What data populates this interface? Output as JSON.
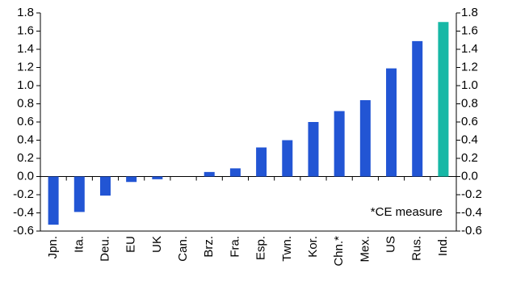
{
  "chart_data": {
    "type": "bar",
    "categories": [
      "Jpn.",
      "Ita.",
      "Deu.",
      "EU",
      "UK",
      "Can.",
      "Brz.",
      "Fra.",
      "Esp.",
      "Twn.",
      "Kor.",
      "Chn.*",
      "Mex.",
      "US",
      "Rus.",
      "Ind."
    ],
    "values": [
      -0.53,
      -0.39,
      -0.21,
      -0.06,
      -0.03,
      0.0,
      0.05,
      0.09,
      0.32,
      0.4,
      0.6,
      0.72,
      0.84,
      1.19,
      1.49,
      1.7
    ],
    "colors": [
      "#2255d4",
      "#2255d4",
      "#2255d4",
      "#2255d4",
      "#2255d4",
      "#2255d4",
      "#2255d4",
      "#2255d4",
      "#2255d4",
      "#2255d4",
      "#2255d4",
      "#2255d4",
      "#2255d4",
      "#2255d4",
      "#2255d4",
      "#17b8a6"
    ],
    "ylim": [
      -0.6,
      1.8
    ],
    "yticks": [
      {
        "value": 1.8,
        "label": "1.8"
      },
      {
        "value": 1.6,
        "label": "1.6"
      },
      {
        "value": 1.4,
        "label": "1.4"
      },
      {
        "value": 1.2,
        "label": "1.2"
      },
      {
        "value": 1.0,
        "label": "1.0"
      },
      {
        "value": 0.8,
        "label": "0.8"
      },
      {
        "value": 0.6,
        "label": "0.6"
      },
      {
        "value": 0.4,
        "label": "0.4"
      },
      {
        "value": 0.2,
        "label": "0.2"
      },
      {
        "value": 0.0,
        "label": "0.0"
      },
      {
        "value": -0.2,
        "label": "-0.2"
      },
      {
        "value": -0.4,
        "label": "-0.4"
      },
      {
        "value": -0.6,
        "label": "-0.6"
      }
    ],
    "y2lim": [
      -0.6,
      1.8
    ],
    "y2ticks": [
      {
        "value": 1.8,
        "label": "1.8"
      },
      {
        "value": 1.6,
        "label": "1.6"
      },
      {
        "value": 1.4,
        "label": "1.4"
      },
      {
        "value": 1.2,
        "label": "1.2"
      },
      {
        "value": 1.0,
        "label": "1.0"
      },
      {
        "value": 0.8,
        "label": "0.8"
      },
      {
        "value": 0.6,
        "label": "0.6"
      },
      {
        "value": 0.4,
        "label": "0.4"
      },
      {
        "value": 0.2,
        "label": "0.2"
      },
      {
        "value": 0.0,
        "label": "0.0"
      },
      {
        "value": -0.2,
        "label": "-0.2"
      },
      {
        "value": -0.4,
        "label": "-0.4"
      },
      {
        "value": -0.6,
        "label": "-0.6"
      }
    ],
    "annotation": "*CE measure"
  }
}
